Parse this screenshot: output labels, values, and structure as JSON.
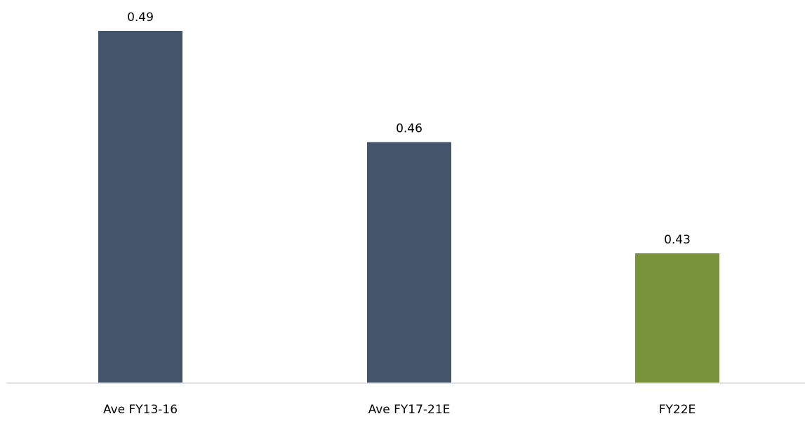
{
  "chart_data": {
    "type": "bar",
    "categories": [
      "Ave FY13-16",
      "Ave FY17-21E",
      "FY22E"
    ],
    "values": [
      0.49,
      0.46,
      0.43
    ],
    "data_labels": [
      "0.49",
      "0.46",
      "0.43"
    ],
    "bar_colors": [
      "#44546a",
      "#44546a",
      "#78933c"
    ],
    "axis_color": "#d9d9d9",
    "ylim": [
      0.395,
      0.49
    ],
    "grid": false,
    "legend": "none"
  }
}
